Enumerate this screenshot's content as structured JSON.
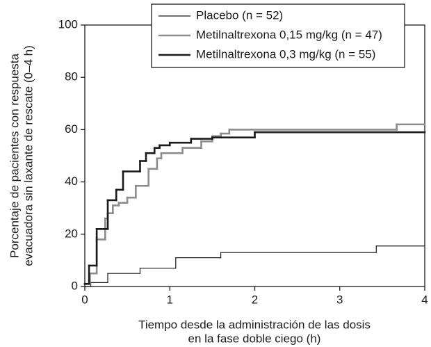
{
  "chart_data": {
    "type": "line",
    "step": "post",
    "xlabel": [
      "Tiempo desde la administración de las dosis",
      "en la fase doble ciego (h)"
    ],
    "ylabel": [
      "Porcentaje de pacientes con respuesta",
      "evacuadora sin laxante de rescate (0–4 h)"
    ],
    "xlim": [
      0,
      4
    ],
    "xticks": [
      0,
      1,
      2,
      3,
      4
    ],
    "ylim": [
      0,
      100
    ],
    "yticks": [
      0,
      20,
      40,
      60,
      80,
      100
    ],
    "grid": false,
    "legend": "top-right",
    "series": [
      {
        "name": "Placebo (n = 52)",
        "color": "#1a1a1a",
        "width": 1.2,
        "x": [
          0,
          0.07,
          0.27,
          0.65,
          1.07,
          1.6,
          3.43
        ],
        "values": [
          0,
          1.5,
          5,
          7,
          11,
          13,
          15.5
        ]
      },
      {
        "name": "Metilnaltrexona 0,15 mg/kg (n = 47)",
        "color": "#8c8c8c",
        "width": 2.6,
        "x": [
          0,
          0.06,
          0.14,
          0.24,
          0.27,
          0.33,
          0.4,
          0.5,
          0.6,
          0.75,
          0.85,
          0.9,
          1.15,
          1.37,
          1.5,
          1.6,
          1.7,
          3.67
        ],
        "values": [
          1,
          5,
          18,
          26,
          28,
          31,
          32,
          34,
          38.5,
          45,
          49,
          51,
          53,
          55.5,
          57.5,
          58.5,
          60,
          62
        ]
      },
      {
        "name": "Metilnaltrexona 0,3 mg/kg (n = 55)",
        "color": "#1a1a1a",
        "width": 2.6,
        "x": [
          0,
          0.05,
          0.14,
          0.27,
          0.37,
          0.45,
          0.65,
          0.72,
          0.82,
          0.88,
          1.0,
          1.25,
          1.5,
          2.0
        ],
        "values": [
          1,
          8,
          22,
          33,
          37,
          44,
          48,
          51,
          53,
          54,
          55,
          56.5,
          57,
          59
        ]
      }
    ]
  }
}
